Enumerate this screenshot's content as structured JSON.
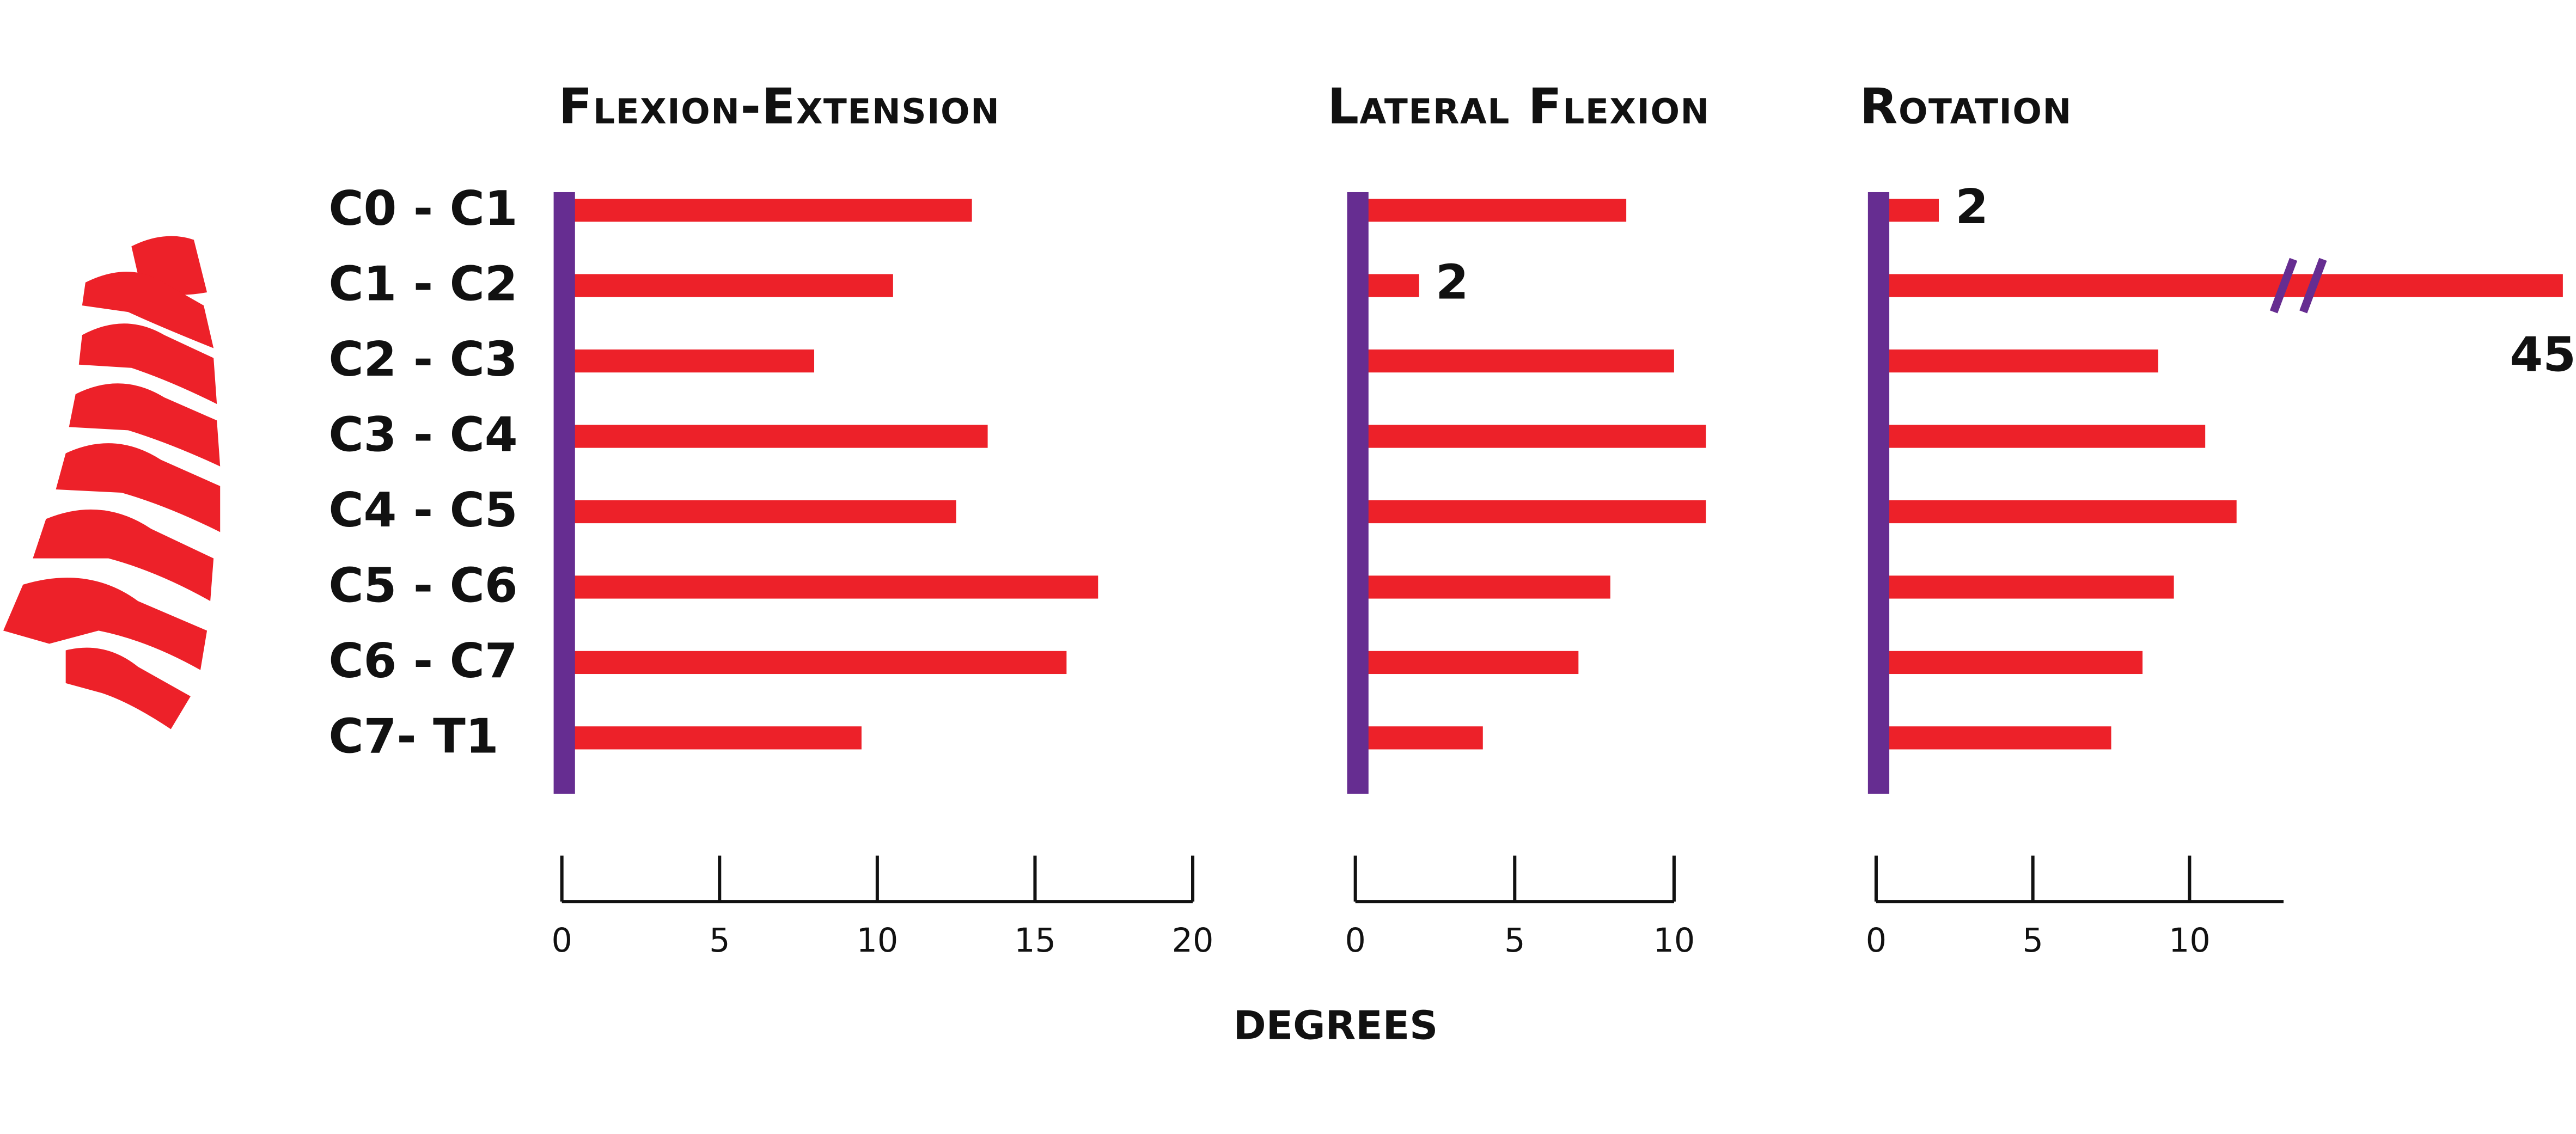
{
  "xlabel": "DEGREES",
  "chart_data": [
    {
      "type": "bar",
      "orientation": "horizontal",
      "title": "Flexion-Extension",
      "categories": [
        "C0 - C1",
        "C1 - C2",
        "C2 - C3",
        "C3 - C4",
        "C4 - C5",
        "C5 - C6",
        "C6 - C7",
        "C7- T1"
      ],
      "values": [
        13,
        10.5,
        8,
        13.5,
        12.5,
        17,
        16,
        9.5
      ],
      "value_labels": [
        null,
        null,
        null,
        null,
        null,
        null,
        null,
        null
      ],
      "color": "#ed2129",
      "axis_color": "#662d91",
      "xlim": [
        0,
        20
      ],
      "xticks": [
        0,
        5,
        10,
        15,
        20
      ]
    },
    {
      "type": "bar",
      "orientation": "horizontal",
      "title": "Lateral Flexion",
      "values": [
        8.5,
        2,
        10,
        11,
        11,
        8,
        7,
        4
      ],
      "value_labels": [
        null,
        "2",
        null,
        null,
        null,
        null,
        null,
        null
      ],
      "color": "#ed2129",
      "axis_color": "#662d91",
      "xlim": [
        0,
        10
      ],
      "xticks": [
        0,
        5,
        10
      ]
    },
    {
      "type": "bar",
      "orientation": "horizontal",
      "title": "Rotation",
      "values": [
        2,
        45,
        9,
        10.5,
        11.5,
        9.5,
        8.5,
        7.5
      ],
      "value_labels": [
        "2",
        "45",
        null,
        null,
        null,
        null,
        null,
        null
      ],
      "color": "#ed2129",
      "axis_color": "#662d91",
      "xlim": [
        0,
        13
      ],
      "xticks": [
        0,
        5,
        10
      ]
    }
  ]
}
